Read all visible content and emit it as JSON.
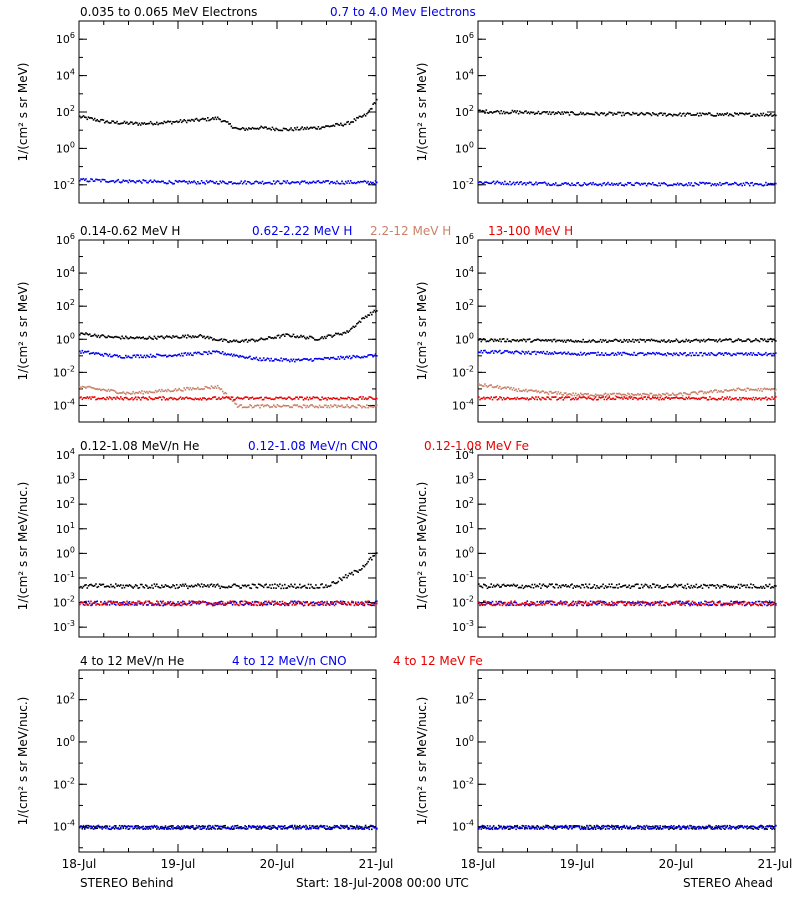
{
  "colors": {
    "black": "#000000",
    "blue": "#0000ee",
    "tan": "#c8826a",
    "red": "#e80000"
  },
  "footer": {
    "left": "STEREO Behind",
    "center": "Start: 18-Jul-2008 00:00 UTC",
    "right": "STEREO Ahead"
  },
  "x_axis": {
    "ticks": [
      "18-Jul",
      "19-Jul",
      "20-Jul",
      "21-Jul"
    ],
    "range_days": [
      0,
      3
    ]
  },
  "rows": [
    {
      "legend": [
        {
          "text": "0.035 to 0.065 MeV Electrons",
          "color": "#000000"
        },
        {
          "text": "0.7 to 4.0 Mev Electrons",
          "color": "#0000ee"
        }
      ],
      "ylabel": "1/(cm² s sr MeV)",
      "yticks": [
        {
          "exp": 6,
          "label": "10^6"
        },
        {
          "exp": 4,
          "label": "10^4"
        },
        {
          "exp": 2,
          "label": "10^2"
        },
        {
          "exp": 0,
          "label": "10^0"
        },
        {
          "exp": -2,
          "label": "10^-2"
        }
      ],
      "log_ylim": [
        -3,
        7
      ]
    },
    {
      "legend": [
        {
          "text": "0.14-0.62 MeV H",
          "color": "#000000"
        },
        {
          "text": "0.62-2.22 MeV H",
          "color": "#0000ee"
        },
        {
          "text": "2.2-12 MeV H",
          "color": "#c8826a"
        },
        {
          "text": "13-100 MeV H",
          "color": "#e80000"
        }
      ],
      "ylabel": "1/(cm² s sr MeV)",
      "yticks": [
        {
          "exp": 6,
          "label": "10^6"
        },
        {
          "exp": 4,
          "label": "10^4"
        },
        {
          "exp": 2,
          "label": "10^2"
        },
        {
          "exp": 0,
          "label": "10^0"
        },
        {
          "exp": -2,
          "label": "10^-2"
        },
        {
          "exp": -4,
          "label": "10^-4"
        }
      ],
      "log_ylim": [
        -5,
        6
      ]
    },
    {
      "legend": [
        {
          "text": "0.12-1.08 MeV/n He",
          "color": "#000000"
        },
        {
          "text": "0.12-1.08 MeV/n CNO",
          "color": "#0000ee"
        },
        {
          "text": "0.12-1.08 MeV Fe",
          "color": "#e80000"
        }
      ],
      "ylabel": "1/(cm² s sr MeV/nuc.)",
      "yticks": [
        {
          "exp": 4,
          "label": "10^4"
        },
        {
          "exp": 3,
          "label": "10^3"
        },
        {
          "exp": 2,
          "label": "10^2"
        },
        {
          "exp": 1,
          "label": "10^1"
        },
        {
          "exp": 0,
          "label": "10^0"
        },
        {
          "exp": -1,
          "label": "10^-1"
        },
        {
          "exp": -2,
          "label": "10^-2"
        },
        {
          "exp": -3,
          "label": "10^-3"
        }
      ],
      "log_ylim": [
        -3.4,
        4
      ]
    },
    {
      "legend": [
        {
          "text": "4 to 12 MeV/n He",
          "color": "#000000"
        },
        {
          "text": "4 to 12 MeV/n CNO",
          "color": "#0000ee"
        },
        {
          "text": "4 to 12 MeV Fe",
          "color": "#e80000"
        }
      ],
      "ylabel": "1/(cm² s sr MeV/nuc.)",
      "yticks": [
        {
          "exp": 2,
          "label": "10^2"
        },
        {
          "exp": 0,
          "label": "10^0"
        },
        {
          "exp": -2,
          "label": "10^-2"
        },
        {
          "exp": -4,
          "label": "10^-4"
        }
      ],
      "log_ylim": [
        -5.2,
        3.4
      ]
    }
  ],
  "chart_data": [
    {
      "type": "scatter",
      "panel": "Behind row 1",
      "yscale": "log",
      "series": [
        {
          "name": "0.035 to 0.065 MeV Electrons",
          "x_days": [
            0,
            0.3,
            0.6,
            0.9,
            1.2,
            1.4,
            1.6,
            1.8,
            2.1,
            2.4,
            2.7,
            2.9,
            3.0
          ],
          "y": [
            60,
            30,
            25,
            30,
            40,
            50,
            12,
            15,
            12,
            15,
            25,
            80,
            500
          ]
        },
        {
          "name": "0.7 to 4.0 Mev Electrons",
          "x_days": [
            0,
            1.0,
            2.0,
            3.0
          ],
          "y": [
            0.02,
            0.015,
            0.015,
            0.015
          ]
        }
      ]
    },
    {
      "type": "scatter",
      "panel": "Ahead row 1",
      "yscale": "log",
      "series": [
        {
          "name": "0.035 to 0.065 MeV Electrons",
          "x_days": [
            0,
            1.0,
            2.0,
            3.0
          ],
          "y": [
            120,
            90,
            80,
            80
          ]
        },
        {
          "name": "0.7 to 4.0 Mev Electrons",
          "x_days": [
            0,
            1.0,
            2.0,
            3.0
          ],
          "y": [
            0.015,
            0.012,
            0.012,
            0.012
          ]
        }
      ]
    },
    {
      "type": "scatter",
      "panel": "Behind row 2",
      "yscale": "log",
      "series": [
        {
          "name": "0.14-0.62 MeV H",
          "x_days": [
            0,
            0.3,
            0.6,
            0.9,
            1.2,
            1.5,
            1.8,
            2.1,
            2.4,
            2.7,
            2.9,
            3.0
          ],
          "y": [
            2.5,
            1.5,
            1.3,
            1.5,
            1.8,
            0.8,
            1.0,
            2.0,
            1.2,
            3.0,
            30,
            60
          ]
        },
        {
          "name": "0.62-2.22 MeV H",
          "x_days": [
            0,
            0.4,
            0.9,
            1.4,
            1.8,
            2.2,
            2.6,
            3.0
          ],
          "y": [
            0.2,
            0.1,
            0.12,
            0.18,
            0.07,
            0.06,
            0.08,
            0.12
          ]
        },
        {
          "name": "2.2-12 MeV H",
          "x_days": [
            0,
            0.5,
            1.0,
            1.4,
            1.6,
            2.2,
            3.0
          ],
          "y": [
            0.0015,
            0.0006,
            0.001,
            0.0015,
            0.0001,
            0.0001,
            0.0001
          ]
        },
        {
          "name": "13-100 MeV H",
          "x_days": [
            0,
            1.0,
            2.0,
            3.0
          ],
          "y": [
            0.0003,
            0.0003,
            0.0003,
            0.0003
          ]
        }
      ]
    },
    {
      "type": "scatter",
      "panel": "Ahead row 2",
      "yscale": "log",
      "series": [
        {
          "name": "0.14-0.62 MeV H",
          "x_days": [
            0,
            1.0,
            2.0,
            3.0
          ],
          "y": [
            1.0,
            0.9,
            0.9,
            1.0
          ]
        },
        {
          "name": "0.62-2.22 MeV H",
          "x_days": [
            0,
            1.0,
            2.0,
            3.0
          ],
          "y": [
            0.2,
            0.15,
            0.14,
            0.14
          ]
        },
        {
          "name": "2.2-12 MeV H",
          "x_days": [
            0,
            0.5,
            1.0,
            2.0,
            2.6,
            3.0
          ],
          "y": [
            0.002,
            0.0008,
            0.0005,
            0.0005,
            0.001,
            0.001
          ]
        },
        {
          "name": "13-100 MeV H",
          "x_days": [
            0,
            1.0,
            2.0,
            3.0
          ],
          "y": [
            0.0003,
            0.0003,
            0.0003,
            0.0003
          ]
        }
      ]
    },
    {
      "type": "scatter",
      "panel": "Behind row 3",
      "yscale": "log",
      "series": [
        {
          "name": "0.12-1.08 MeV/n He",
          "x_days": [
            0,
            0.5,
            1.0,
            1.5,
            2.0,
            2.5,
            2.8,
            3.0
          ],
          "y": [
            0.05,
            0.05,
            0.05,
            0.05,
            0.05,
            0.05,
            0.2,
            1.0
          ]
        },
        {
          "name": "0.12-1.08 MeV/n CNO",
          "x_days": [
            0,
            1.0,
            2.0,
            3.0
          ],
          "y": [
            0.01,
            0.01,
            0.01,
            0.01
          ]
        },
        {
          "name": "0.12-1.08 MeV Fe",
          "x_days": [
            0,
            1.0,
            2.0,
            3.0
          ],
          "y": [
            0.01,
            0.01,
            0.01,
            0.01
          ]
        }
      ]
    },
    {
      "type": "scatter",
      "panel": "Ahead row 3",
      "yscale": "log",
      "series": [
        {
          "name": "0.12-1.08 MeV/n He",
          "x_days": [
            0,
            1.0,
            2.0,
            3.0
          ],
          "y": [
            0.05,
            0.05,
            0.05,
            0.05
          ]
        },
        {
          "name": "0.12-1.08 MeV/n CNO",
          "x_days": [
            0,
            1.0,
            2.0,
            3.0
          ],
          "y": [
            0.01,
            0.01,
            0.01,
            0.01
          ]
        },
        {
          "name": "0.12-1.08 MeV Fe",
          "x_days": [
            0,
            1.0,
            2.0,
            3.0
          ],
          "y": [
            0.01,
            0.01,
            0.01,
            0.01
          ]
        }
      ]
    },
    {
      "type": "scatter",
      "panel": "Behind row 4",
      "yscale": "log",
      "series": [
        {
          "name": "4 to 12 MeV/n He",
          "x_days": [
            0,
            1.0,
            2.0,
            3.0
          ],
          "y": [
            0.0001,
            0.0001,
            0.0001,
            0.0001
          ]
        },
        {
          "name": "4 to 12 MeV/n CNO",
          "x_days": [
            0,
            1.0,
            2.0,
            3.0
          ],
          "y": [
            0.0001,
            0.0001,
            0.0001,
            0.0001
          ]
        }
      ]
    },
    {
      "type": "scatter",
      "panel": "Ahead row 4",
      "yscale": "log",
      "series": [
        {
          "name": "4 to 12 MeV/n He",
          "x_days": [
            0,
            1.0,
            2.0,
            3.0
          ],
          "y": [
            0.0001,
            0.0001,
            0.0001,
            0.0001
          ]
        },
        {
          "name": "4 to 12 MeV/n CNO",
          "x_days": [
            0,
            1.0,
            2.0,
            3.0
          ],
          "y": [
            0.0001,
            0.0001,
            0.0001,
            0.0001
          ]
        }
      ]
    }
  ]
}
